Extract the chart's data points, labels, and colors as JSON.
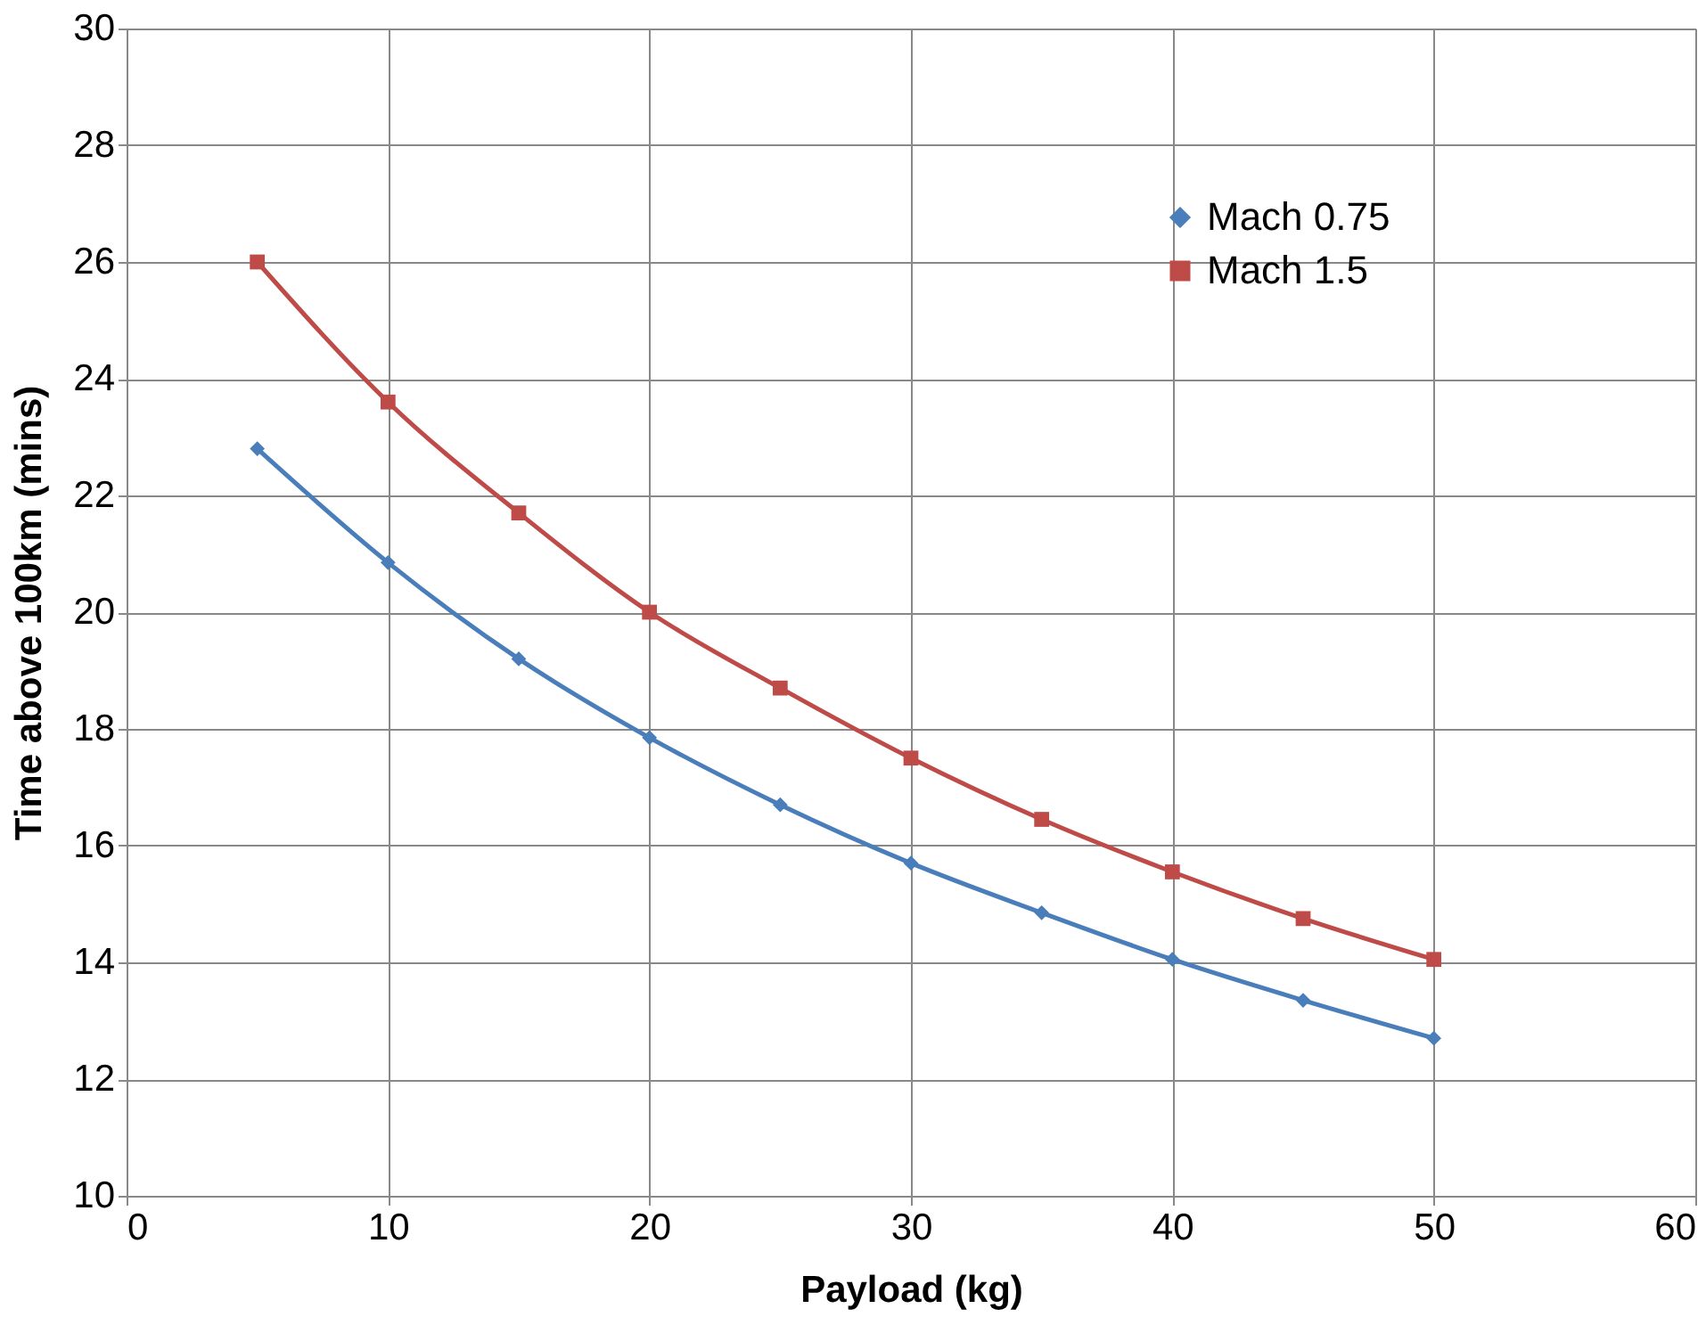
{
  "chart_data": {
    "type": "line",
    "xlabel": "Payload (kg)",
    "ylabel": "Time above 100km  (mins)",
    "x": [
      5,
      10,
      15,
      20,
      25,
      30,
      35,
      40,
      45,
      50
    ],
    "series": [
      {
        "name": "Mach 0.75",
        "color": "#4a7ebb",
        "marker": "diamond",
        "values": [
          22.8,
          20.85,
          19.2,
          17.85,
          16.7,
          15.7,
          14.85,
          14.05,
          13.35,
          12.7
        ]
      },
      {
        "name": "Mach 1.5",
        "color": "#be4b48",
        "marker": "square",
        "values": [
          26.0,
          23.6,
          21.7,
          20.0,
          18.7,
          17.5,
          16.45,
          15.55,
          14.75,
          14.05
        ]
      }
    ],
    "xlim": [
      0,
      60
    ],
    "xticks": [
      0,
      10,
      20,
      30,
      40,
      50,
      60
    ],
    "ylim": [
      10,
      30
    ],
    "yticks": [
      10,
      12,
      14,
      16,
      18,
      20,
      22,
      24,
      26,
      28,
      30
    ],
    "grid": true,
    "legend": "top right",
    "line_style": "solid"
  }
}
